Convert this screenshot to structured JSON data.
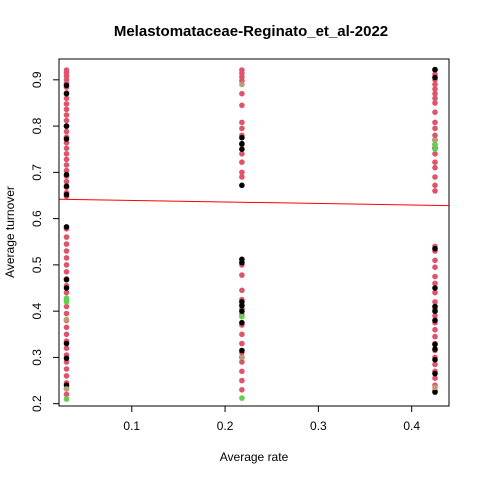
{
  "chart_data": {
    "type": "scatter",
    "title": "Melastomataceae-Reginato_et_al-2022",
    "xlabel": "Average rate",
    "ylabel": "Average turnover",
    "xlim": [
      0.022,
      0.44
    ],
    "ylim": [
      0.195,
      0.945
    ],
    "x_ticks": [
      0.1,
      0.2,
      0.3,
      0.4
    ],
    "x_tick_labels": [
      "0.1",
      "0.2",
      "0.3",
      "0.4"
    ],
    "y_ticks": [
      0.2,
      0.3,
      0.4,
      0.5,
      0.6,
      0.7,
      0.8,
      0.9
    ],
    "y_tick_labels": [
      "0.2",
      "0.3",
      "0.4",
      "0.5",
      "0.6",
      "0.7",
      "0.8",
      "0.9"
    ],
    "grid": false,
    "legend": "none",
    "colors": {
      "pink": "#DF536B",
      "black": "#000000",
      "green": "#61D04F",
      "olive": "#B8A070",
      "fit_line": "#FF0000"
    },
    "fit_line": {
      "x": [
        0.022,
        0.44
      ],
      "y": [
        0.642,
        0.628
      ]
    },
    "series": [
      {
        "color": "pink",
        "points": [
          [
            0.03,
            0.921
          ],
          [
            0.03,
            0.915
          ],
          [
            0.03,
            0.908
          ],
          [
            0.03,
            0.9
          ],
          [
            0.03,
            0.892
          ],
          [
            0.03,
            0.884
          ],
          [
            0.03,
            0.872
          ],
          [
            0.03,
            0.86
          ],
          [
            0.03,
            0.848
          ],
          [
            0.03,
            0.836
          ],
          [
            0.03,
            0.824
          ],
          [
            0.03,
            0.812
          ],
          [
            0.03,
            0.8
          ],
          [
            0.03,
            0.788
          ],
          [
            0.03,
            0.776
          ],
          [
            0.03,
            0.764
          ],
          [
            0.03,
            0.752
          ],
          [
            0.03,
            0.74
          ],
          [
            0.03,
            0.728
          ],
          [
            0.03,
            0.716
          ],
          [
            0.03,
            0.704
          ],
          [
            0.03,
            0.692
          ],
          [
            0.03,
            0.68
          ],
          [
            0.03,
            0.668
          ],
          [
            0.03,
            0.656
          ],
          [
            0.03,
            0.648
          ],
          [
            0.03,
            0.578
          ],
          [
            0.03,
            0.56
          ],
          [
            0.03,
            0.545
          ],
          [
            0.03,
            0.53
          ],
          [
            0.03,
            0.515
          ],
          [
            0.03,
            0.5
          ],
          [
            0.03,
            0.485
          ],
          [
            0.03,
            0.47
          ],
          [
            0.03,
            0.455
          ],
          [
            0.03,
            0.44
          ],
          [
            0.03,
            0.425
          ],
          [
            0.03,
            0.41
          ],
          [
            0.03,
            0.395
          ],
          [
            0.03,
            0.38
          ],
          [
            0.03,
            0.365
          ],
          [
            0.03,
            0.35
          ],
          [
            0.03,
            0.335
          ],
          [
            0.03,
            0.32
          ],
          [
            0.03,
            0.305
          ],
          [
            0.03,
            0.29
          ],
          [
            0.03,
            0.275
          ],
          [
            0.03,
            0.26
          ],
          [
            0.03,
            0.245
          ],
          [
            0.03,
            0.232
          ],
          [
            0.03,
            0.22
          ],
          [
            0.218,
            0.921
          ],
          [
            0.218,
            0.914
          ],
          [
            0.218,
            0.906
          ],
          [
            0.218,
            0.898
          ],
          [
            0.218,
            0.87
          ],
          [
            0.218,
            0.845
          ],
          [
            0.218,
            0.808
          ],
          [
            0.218,
            0.795
          ],
          [
            0.218,
            0.78
          ],
          [
            0.218,
            0.76
          ],
          [
            0.218,
            0.74
          ],
          [
            0.218,
            0.722
          ],
          [
            0.218,
            0.7
          ],
          [
            0.218,
            0.69
          ],
          [
            0.218,
            0.5
          ],
          [
            0.218,
            0.478
          ],
          [
            0.218,
            0.445
          ],
          [
            0.218,
            0.425
          ],
          [
            0.218,
            0.405
          ],
          [
            0.218,
            0.392
          ],
          [
            0.218,
            0.37
          ],
          [
            0.218,
            0.35
          ],
          [
            0.218,
            0.33
          ],
          [
            0.218,
            0.31
          ],
          [
            0.218,
            0.29
          ],
          [
            0.218,
            0.27
          ],
          [
            0.218,
            0.25
          ],
          [
            0.218,
            0.23
          ],
          [
            0.425,
            0.921
          ],
          [
            0.425,
            0.912
          ],
          [
            0.425,
            0.9
          ],
          [
            0.425,
            0.89
          ],
          [
            0.425,
            0.88
          ],
          [
            0.425,
            0.87
          ],
          [
            0.425,
            0.86
          ],
          [
            0.425,
            0.85
          ],
          [
            0.425,
            0.83
          ],
          [
            0.425,
            0.808
          ],
          [
            0.425,
            0.795
          ],
          [
            0.425,
            0.78
          ],
          [
            0.425,
            0.76
          ],
          [
            0.425,
            0.74
          ],
          [
            0.425,
            0.722
          ],
          [
            0.425,
            0.71
          ],
          [
            0.425,
            0.69
          ],
          [
            0.425,
            0.672
          ],
          [
            0.425,
            0.66
          ],
          [
            0.425,
            0.54
          ],
          [
            0.425,
            0.53
          ],
          [
            0.425,
            0.51
          ],
          [
            0.425,
            0.495
          ],
          [
            0.425,
            0.475
          ],
          [
            0.425,
            0.46
          ],
          [
            0.425,
            0.44
          ],
          [
            0.425,
            0.42
          ],
          [
            0.425,
            0.405
          ],
          [
            0.425,
            0.39
          ],
          [
            0.425,
            0.375
          ],
          [
            0.425,
            0.36
          ],
          [
            0.425,
            0.345
          ],
          [
            0.425,
            0.33
          ],
          [
            0.425,
            0.315
          ],
          [
            0.425,
            0.3
          ],
          [
            0.425,
            0.285
          ],
          [
            0.425,
            0.27
          ],
          [
            0.425,
            0.255
          ],
          [
            0.425,
            0.24
          ],
          [
            0.425,
            0.228
          ]
        ]
      },
      {
        "color": "black",
        "points": [
          [
            0.03,
            0.888
          ],
          [
            0.03,
            0.87
          ],
          [
            0.03,
            0.8
          ],
          [
            0.03,
            0.772
          ],
          [
            0.03,
            0.695
          ],
          [
            0.03,
            0.67
          ],
          [
            0.03,
            0.652
          ],
          [
            0.03,
            0.582
          ],
          [
            0.03,
            0.468
          ],
          [
            0.03,
            0.45
          ],
          [
            0.03,
            0.33
          ],
          [
            0.03,
            0.298
          ],
          [
            0.03,
            0.24
          ],
          [
            0.218,
            0.775
          ],
          [
            0.218,
            0.762
          ],
          [
            0.218,
            0.75
          ],
          [
            0.218,
            0.672
          ],
          [
            0.218,
            0.512
          ],
          [
            0.218,
            0.505
          ],
          [
            0.218,
            0.42
          ],
          [
            0.218,
            0.412
          ],
          [
            0.218,
            0.4
          ],
          [
            0.218,
            0.375
          ],
          [
            0.218,
            0.315
          ],
          [
            0.218,
            0.3
          ],
          [
            0.425,
            0.922
          ],
          [
            0.425,
            0.905
          ],
          [
            0.425,
            0.77
          ],
          [
            0.425,
            0.752
          ],
          [
            0.425,
            0.535
          ],
          [
            0.425,
            0.45
          ],
          [
            0.425,
            0.41
          ],
          [
            0.425,
            0.4
          ],
          [
            0.425,
            0.38
          ],
          [
            0.425,
            0.328
          ],
          [
            0.425,
            0.318
          ],
          [
            0.425,
            0.295
          ],
          [
            0.425,
            0.265
          ],
          [
            0.425,
            0.225
          ]
        ]
      },
      {
        "color": "green",
        "points": [
          [
            0.03,
            0.428
          ],
          [
            0.03,
            0.42
          ],
          [
            0.03,
            0.21
          ],
          [
            0.218,
            0.388
          ],
          [
            0.218,
            0.212
          ],
          [
            0.425,
            0.76
          ],
          [
            0.425,
            0.75
          ]
        ]
      },
      {
        "color": "olive",
        "points": [
          [
            0.03,
            0.232
          ],
          [
            0.03,
            0.382
          ],
          [
            0.218,
            0.89
          ],
          [
            0.218,
            0.3
          ],
          [
            0.425,
            0.77
          ],
          [
            0.425,
            0.235
          ]
        ]
      }
    ]
  }
}
